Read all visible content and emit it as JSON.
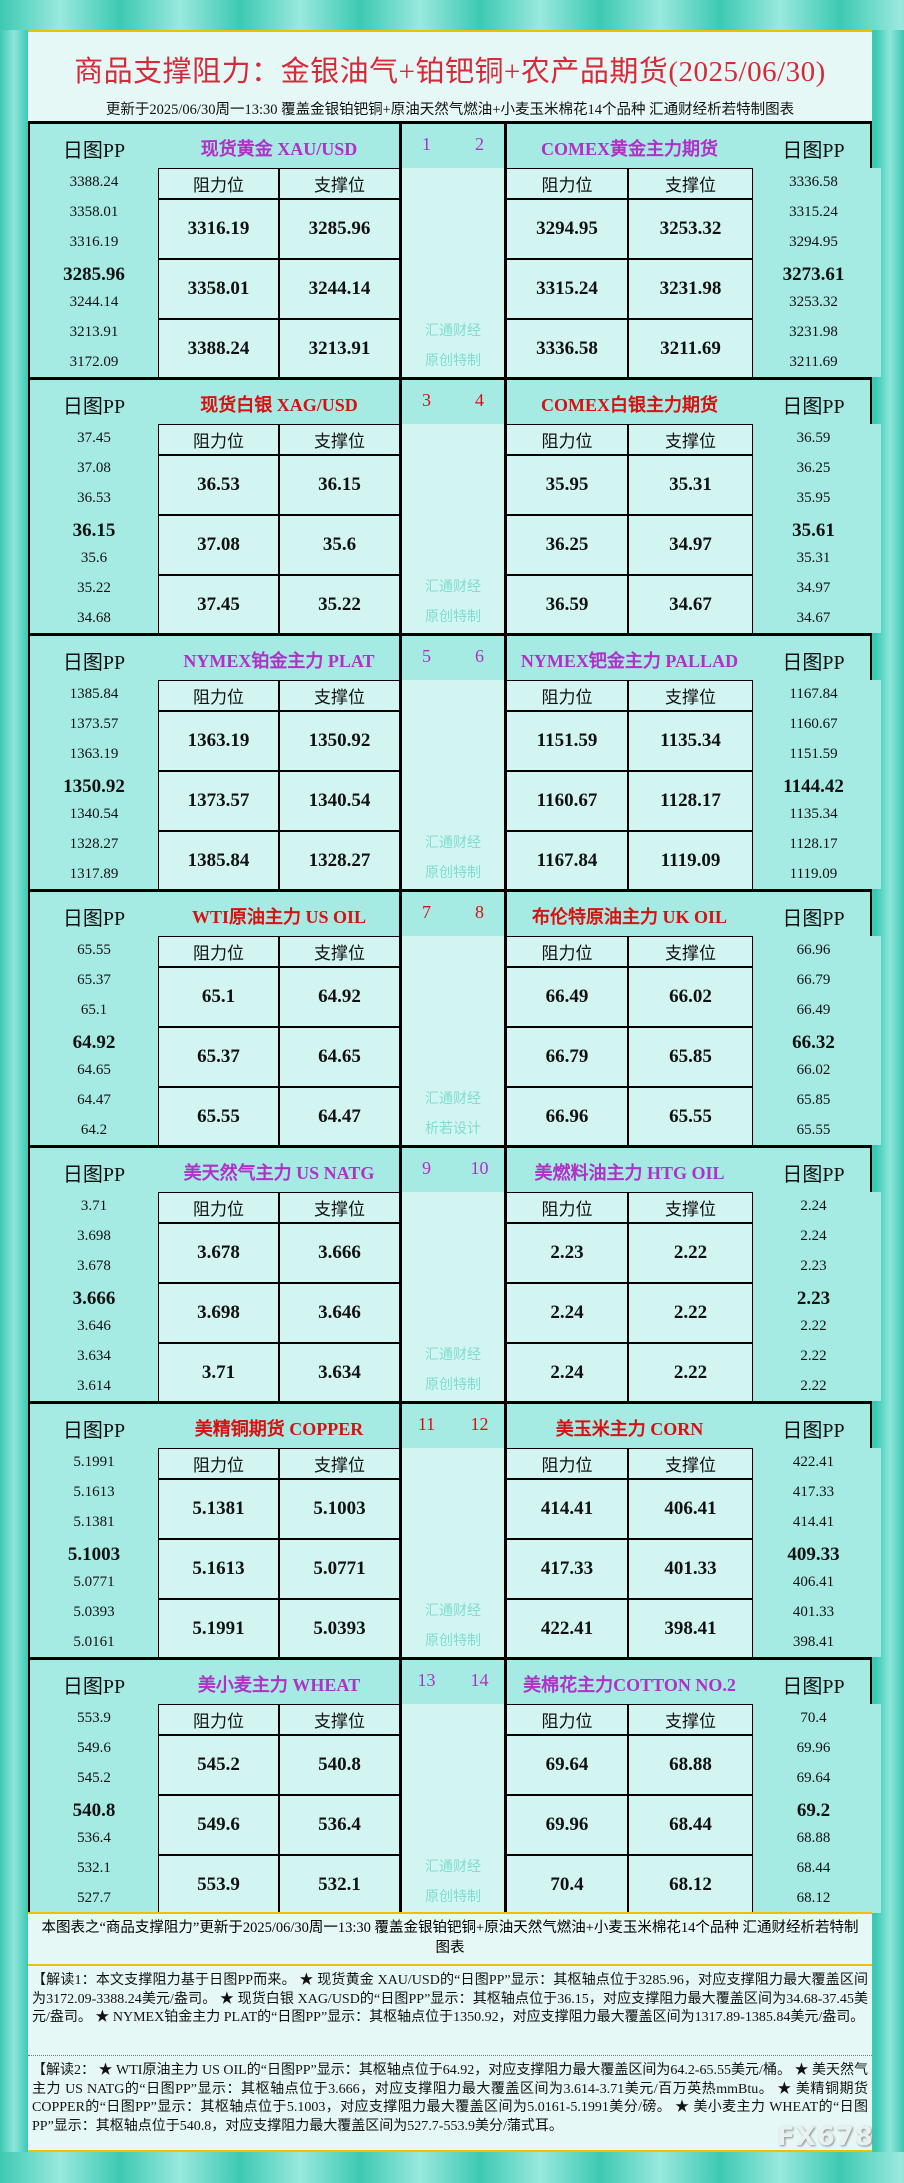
{
  "title": "商品支撑阻力：金银油气+铂钯铜+农产品期货(2025/06/30)",
  "subtitle": "更新于2025/06/30周一13:30  覆盖金银铂钯铜+原油天然气燃油+小麦玉米棉花14个品种  汇通财经析若特制图表",
  "labels": {
    "pp": "日图PP",
    "resistance": "阻力位",
    "support": "支撑位"
  },
  "colors": {
    "purple": "#b030c8",
    "red": "#d81010",
    "pivot_bg": "#a6ebe3",
    "cell_bg": "#d2f5f2"
  },
  "blocks": [
    {
      "nums": [
        "1",
        "2"
      ],
      "color": "#b030c8",
      "watermark": [
        "汇通财经",
        "原创特制"
      ],
      "left": {
        "title": "现货黄金  XAU/USD",
        "pp": [
          "3388.24",
          "3358.01",
          "3316.19",
          "3285.96",
          "3244.14",
          "3213.91",
          "3172.09"
        ],
        "res": [
          "3316.19",
          "3358.01",
          "3388.24"
        ],
        "sup": [
          "3285.96",
          "3244.14",
          "3213.91"
        ]
      },
      "right": {
        "title": "COMEX黄金主力期货",
        "pp": [
          "3336.58",
          "3315.24",
          "3294.95",
          "3273.61",
          "3253.32",
          "3231.98",
          "3211.69"
        ],
        "res": [
          "3294.95",
          "3315.24",
          "3336.58"
        ],
        "sup": [
          "3253.32",
          "3231.98",
          "3211.69"
        ]
      }
    },
    {
      "nums": [
        "3",
        "4"
      ],
      "color": "#d81010",
      "watermark": [
        "汇通财经",
        "原创特制"
      ],
      "left": {
        "title": "现货白银 XAG/USD",
        "pp": [
          "37.45",
          "37.08",
          "36.53",
          "36.15",
          "35.6",
          "35.22",
          "34.68"
        ],
        "res": [
          "36.53",
          "37.08",
          "37.45"
        ],
        "sup": [
          "36.15",
          "35.6",
          "35.22"
        ]
      },
      "right": {
        "title": "COMEX白银主力期货",
        "pp": [
          "36.59",
          "36.25",
          "35.95",
          "35.61",
          "35.31",
          "34.97",
          "34.67"
        ],
        "res": [
          "35.95",
          "36.25",
          "36.59"
        ],
        "sup": [
          "35.31",
          "34.97",
          "34.67"
        ]
      }
    },
    {
      "nums": [
        "5",
        "6"
      ],
      "color": "#b030c8",
      "watermark": [
        "汇通财经",
        "原创特制"
      ],
      "left": {
        "title": "NYMEX铂金主力 PLAT",
        "pp": [
          "1385.84",
          "1373.57",
          "1363.19",
          "1350.92",
          "1340.54",
          "1328.27",
          "1317.89"
        ],
        "res": [
          "1363.19",
          "1373.57",
          "1385.84"
        ],
        "sup": [
          "1350.92",
          "1340.54",
          "1328.27"
        ]
      },
      "right": {
        "title": "NYMEX钯金主力 PALLAD",
        "pp": [
          "1167.84",
          "1160.67",
          "1151.59",
          "1144.42",
          "1135.34",
          "1128.17",
          "1119.09"
        ],
        "res": [
          "1151.59",
          "1160.67",
          "1167.84"
        ],
        "sup": [
          "1135.34",
          "1128.17",
          "1119.09"
        ]
      }
    },
    {
      "nums": [
        "7",
        "8"
      ],
      "color": "#d81010",
      "watermark": [
        "汇通财经",
        "析若设计"
      ],
      "left": {
        "title": "WTI原油主力 US OIL",
        "pp": [
          "65.55",
          "65.37",
          "65.1",
          "64.92",
          "64.65",
          "64.47",
          "64.2"
        ],
        "res": [
          "65.1",
          "65.37",
          "65.55"
        ],
        "sup": [
          "64.92",
          "64.65",
          "64.47"
        ]
      },
      "right": {
        "title": "布伦特原油主力 UK OIL",
        "pp": [
          "66.96",
          "66.79",
          "66.49",
          "66.32",
          "66.02",
          "65.85",
          "65.55"
        ],
        "res": [
          "66.49",
          "66.79",
          "66.96"
        ],
        "sup": [
          "66.02",
          "65.85",
          "65.55"
        ]
      }
    },
    {
      "nums": [
        "9",
        "10"
      ],
      "color": "#b030c8",
      "watermark": [
        "汇通财经",
        "原创特制"
      ],
      "left": {
        "title": "美天然气主力 US NATG",
        "pp": [
          "3.71",
          "3.698",
          "3.678",
          "3.666",
          "3.646",
          "3.634",
          "3.614"
        ],
        "res": [
          "3.678",
          "3.698",
          "3.71"
        ],
        "sup": [
          "3.666",
          "3.646",
          "3.634"
        ]
      },
      "right": {
        "title": "美燃料油主力 HTG OIL",
        "pp": [
          "2.24",
          "2.24",
          "2.23",
          "2.23",
          "2.22",
          "2.22",
          "2.22"
        ],
        "res": [
          "2.23",
          "2.24",
          "2.24"
        ],
        "sup": [
          "2.22",
          "2.22",
          "2.22"
        ]
      }
    },
    {
      "nums": [
        "11",
        "12"
      ],
      "color": "#d81010",
      "watermark": [
        "汇通财经",
        "原创特制"
      ],
      "left": {
        "title": "美精铜期货 COPPER",
        "pp": [
          "5.1991",
          "5.1613",
          "5.1381",
          "5.1003",
          "5.0771",
          "5.0393",
          "5.0161"
        ],
        "res": [
          "5.1381",
          "5.1613",
          "5.1991"
        ],
        "sup": [
          "5.1003",
          "5.0771",
          "5.0393"
        ]
      },
      "right": {
        "title": "美玉米主力 CORN",
        "pp": [
          "422.41",
          "417.33",
          "414.41",
          "409.33",
          "406.41",
          "401.33",
          "398.41"
        ],
        "res": [
          "414.41",
          "417.33",
          "422.41"
        ],
        "sup": [
          "406.41",
          "401.33",
          "398.41"
        ]
      }
    },
    {
      "nums": [
        "13",
        "14"
      ],
      "color": "#b030c8",
      "watermark": [
        "汇通财经",
        "原创特制"
      ],
      "left": {
        "title": "美小麦主力 WHEAT",
        "pp": [
          "553.9",
          "549.6",
          "545.2",
          "540.8",
          "536.4",
          "532.1",
          "527.7"
        ],
        "res": [
          "545.2",
          "549.6",
          "553.9"
        ],
        "sup": [
          "540.8",
          "536.4",
          "532.1"
        ]
      },
      "right": {
        "title": "美棉花主力COTTON NO.2",
        "pp": [
          "70.4",
          "69.96",
          "69.64",
          "69.2",
          "68.88",
          "68.44",
          "68.12"
        ],
        "res": [
          "69.64",
          "69.96",
          "70.4"
        ],
        "sup": [
          "68.88",
          "68.44",
          "68.12"
        ]
      }
    }
  ],
  "footer": {
    "note": "本图表之“商品支撑阻力”更新于2025/06/30周一13:30  覆盖金银铂钯铜+原油天然气燃油+小麦玉米棉花14个品种  汇通财经析若特制图表",
    "interp1": "【解读1：本文支撑阻力基于日图PP而来。 ★ 现货黄金 XAU/USD的“日图PP”显示：其枢轴点位于3285.96，对应支撑阻力最大覆盖区间为3172.09-3388.24美元/盎司。 ★ 现货白银 XAG/USD的“日图PP”显示：其枢轴点位于36.15，对应支撑阻力最大覆盖区间为34.68-37.45美元/盎司。 ★ NYMEX铂金主力 PLAT的“日图PP”显示：其枢轴点位于1350.92，对应支撑阻力最大覆盖区间为1317.89-1385.84美元/盎司。",
    "interp2": "【解读2： ★ WTI原油主力 US OIL的“日图PP”显示：其枢轴点位于64.92，对应支撑阻力最大覆盖区间为64.2-65.55美元/桶。 ★ 美天然气主力 US NATG的“日图PP”显示：其枢轴点位于3.666，对应支撑阻力最大覆盖区间为3.614-3.71美元/百万英热mmBtu。 ★ 美精铜期货 COPPER的“日图PP”显示：其枢轴点位于5.1003，对应支撑阻力最大覆盖区间为5.0161-5.1991美分/磅。 ★ 美小麦主力 WHEAT的“日图PP”显示：其枢轴点位于540.8，对应支撑阻力最大覆盖区间为527.7-553.9美分/蒲式耳。",
    "logo": "FX678"
  }
}
